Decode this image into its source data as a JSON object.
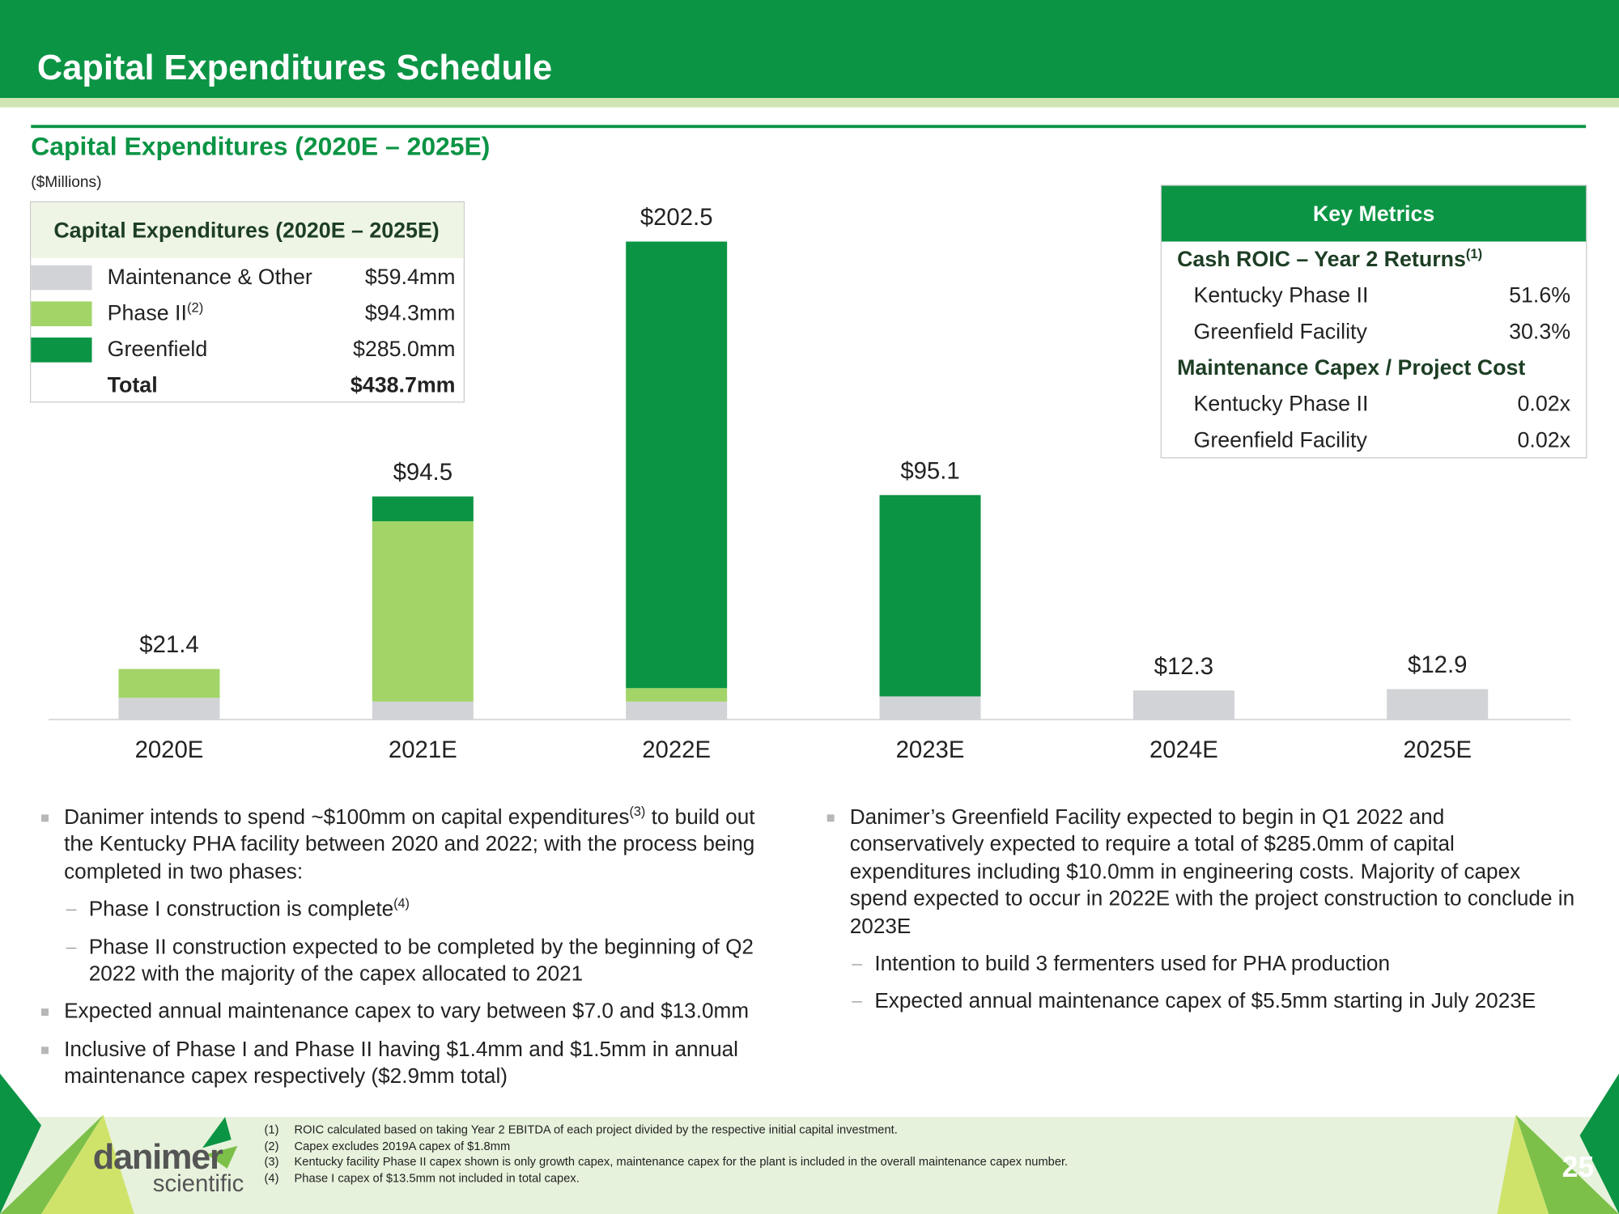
{
  "header": {
    "title": "Capital Expenditures Schedule"
  },
  "chart_data": {
    "type": "stacked-bar",
    "title": "Capital Expenditures (2020E – 2025E)",
    "subtitle": "($Millions)",
    "categories": [
      "2020E",
      "2021E",
      "2022E",
      "2023E",
      "2024E",
      "2025E"
    ],
    "series": [
      {
        "name": "Maintenance & Other",
        "color": "#d1d3d6",
        "values": [
          9.2,
          7.6,
          7.6,
          9.8,
          12.3,
          12.9
        ]
      },
      {
        "name": "Phase II",
        "name_sup": "(2)",
        "color": "#a2d468",
        "values": [
          12.2,
          76.4,
          5.7,
          null,
          null,
          null
        ]
      },
      {
        "name": "Greenfield",
        "color": "#0b9444",
        "values": [
          null,
          10.5,
          189.2,
          85.3,
          null,
          null
        ]
      }
    ],
    "totals": [
      21.4,
      94.5,
      202.5,
      95.1,
      12.3,
      12.9
    ],
    "total_labels": [
      "$21.4",
      "$94.5",
      "$202.5",
      "$95.1",
      "$12.3",
      "$12.9"
    ],
    "legend_table": {
      "title": "Capital Expenditures (2020E – 2025E)",
      "amounts": [
        "$59.4mm",
        "$94.3mm",
        "$285.0mm"
      ],
      "total_label": "Total",
      "total": "$438.7mm"
    }
  },
  "key_metrics": {
    "title": "Key Metrics",
    "sections": [
      {
        "heading": "Cash ROIC – Year 2 Returns",
        "heading_sup": "(1)",
        "rows": [
          {
            "label": "Kentucky Phase II",
            "value": "51.6%"
          },
          {
            "label": "Greenfield Facility",
            "value": "30.3%"
          }
        ]
      },
      {
        "heading": "Maintenance Capex / Project Cost",
        "rows": [
          {
            "label": "Kentucky Phase II",
            "value": "0.02x"
          },
          {
            "label": "Greenfield Facility",
            "value": "0.02x"
          }
        ]
      }
    ]
  },
  "left_bullets": [
    {
      "text": "Danimer intends to spend ~$100mm on capital expenditures",
      "sup": "(3)",
      "text_after": " to build out the Kentucky PHA facility between 2020 and 2022; with the process being completed in two phases:",
      "subs": [
        {
          "text": "Phase I construction is complete",
          "sup": "(4)"
        },
        {
          "text": "Phase II construction expected to be completed by the beginning of Q2 2022 with the majority of the capex allocated to 2021"
        }
      ]
    },
    {
      "text": "Expected annual maintenance capex to vary between $7.0 and $13.0mm"
    },
    {
      "text": "Inclusive of Phase I and Phase II having $1.4mm and $1.5mm in annual maintenance capex respectively ($2.9mm total)"
    }
  ],
  "right_bullets": [
    {
      "text": "Danimer’s Greenfield Facility expected to begin in Q1 2022 and conservatively expected to require a total of $285.0mm of capital expenditures including $10.0mm in engineering costs. Majority of capex spend expected to occur in 2022E with the project construction to conclude in 2023E",
      "subs": [
        {
          "text": "Intention to build 3 fermenters used for PHA production"
        },
        {
          "text": "Expected annual maintenance capex of $5.5mm starting in July 2023E"
        }
      ]
    }
  ],
  "footnotes": [
    {
      "number": "(1)",
      "text": "ROIC calculated based on taking Year 2 EBITDA of each project divided by the respective initial capital investment."
    },
    {
      "number": "(2)",
      "text": "Capex excludes 2019A capex of $1.8mm"
    },
    {
      "number": "(3)",
      "text": "Kentucky facility Phase II capex shown is only growth capex, maintenance capex for the plant is included in the overall maintenance capex number."
    },
    {
      "number": "(4)",
      "text": "Phase I capex of $13.5mm not included in total capex."
    }
  ],
  "logo": {
    "name": "danimer",
    "tagline": "scientific"
  },
  "page_number": "25"
}
